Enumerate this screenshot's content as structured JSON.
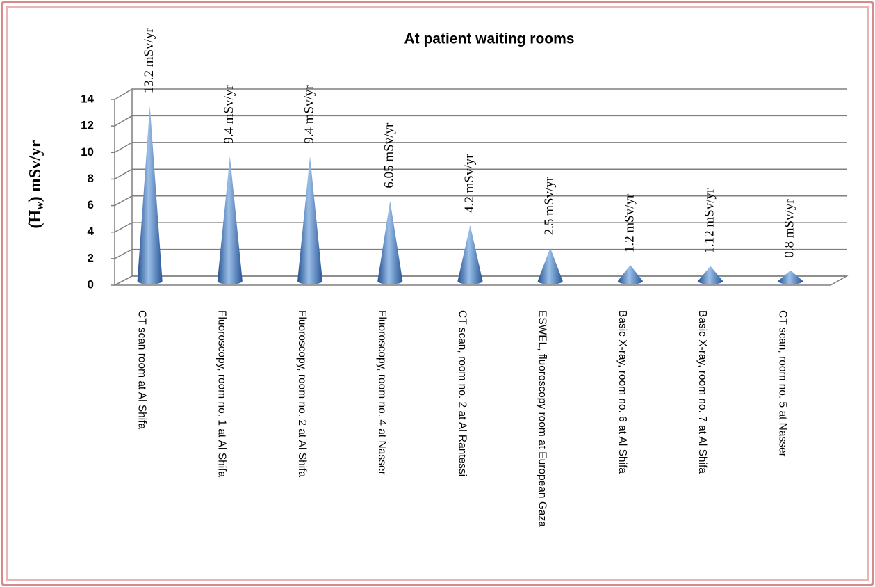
{
  "chart_data": {
    "type": "cone",
    "title": "At patient waiting rooms",
    "ylabel_parts": [
      "(H",
      "w",
      ") mSv/yr"
    ],
    "categories": [
      "CT scan room at Al Shifa",
      "Fluoroscopy, room no. 1 at Al Shifa",
      "Fluoroscopy, room no. 2 at Al Shifa",
      "Fluoroscopy, room no. 4 at Nasser",
      "CT scan, room no. 2 at Al Rantessi",
      "ESWEL, fluoroscopy room at European Gaza",
      "Basic X-ray, room no. 6 at Al Shifa",
      "Basic X-ray, room no. 7 at Al Shifa",
      "CT scan, room no. 5 at Nasser"
    ],
    "values": [
      13.2,
      9.4,
      9.4,
      6.05,
      4.2,
      2.5,
      1.2,
      1.12,
      0.8
    ],
    "value_labels": [
      "13.2  mSv/yr",
      "9.4 mSv/yr",
      "9.4 mSv/yr",
      "6.05 mSv/yr",
      "4.2 mSv/yr",
      "2.5 mSv/yr",
      "1.2 mSv/yr",
      "1.12 mSv/yr",
      "0.8 mSv/yr"
    ],
    "color": "#3f6fb0",
    "ylim": [
      0,
      14
    ],
    "yticks": [
      0,
      2,
      4,
      6,
      8,
      10,
      12,
      14
    ],
    "grid": true
  }
}
